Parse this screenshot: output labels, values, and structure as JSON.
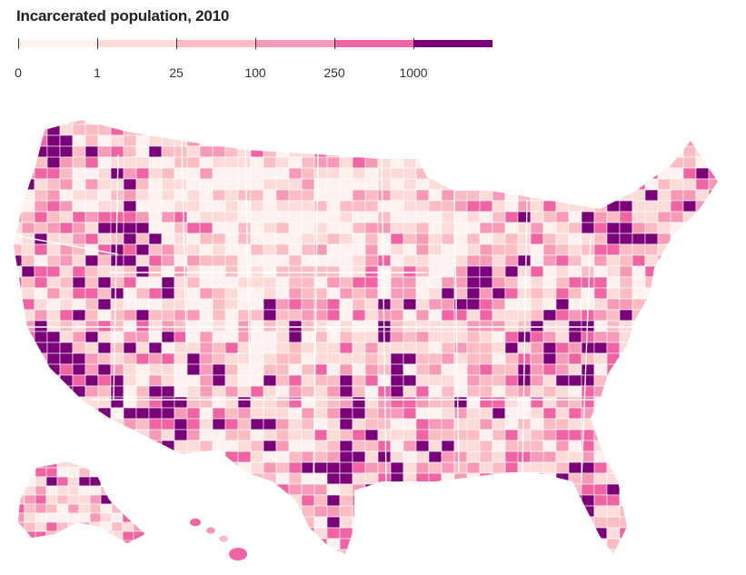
{
  "title": "Incarcerated population, 2010",
  "legend": {
    "bins": [
      {
        "label": "0",
        "color": "#fff1ef"
      },
      {
        "label": "1",
        "color": "#fddbd9"
      },
      {
        "label": "25",
        "color": "#fbbcc3"
      },
      {
        "label": "100",
        "color": "#f79ab8"
      },
      {
        "label": "250",
        "color": "#f064a3"
      },
      {
        "label": "1000",
        "color": "#7a0177"
      }
    ]
  },
  "map": {
    "type": "choropleth",
    "geography": "US counties",
    "border_color": "#ffffff"
  }
}
